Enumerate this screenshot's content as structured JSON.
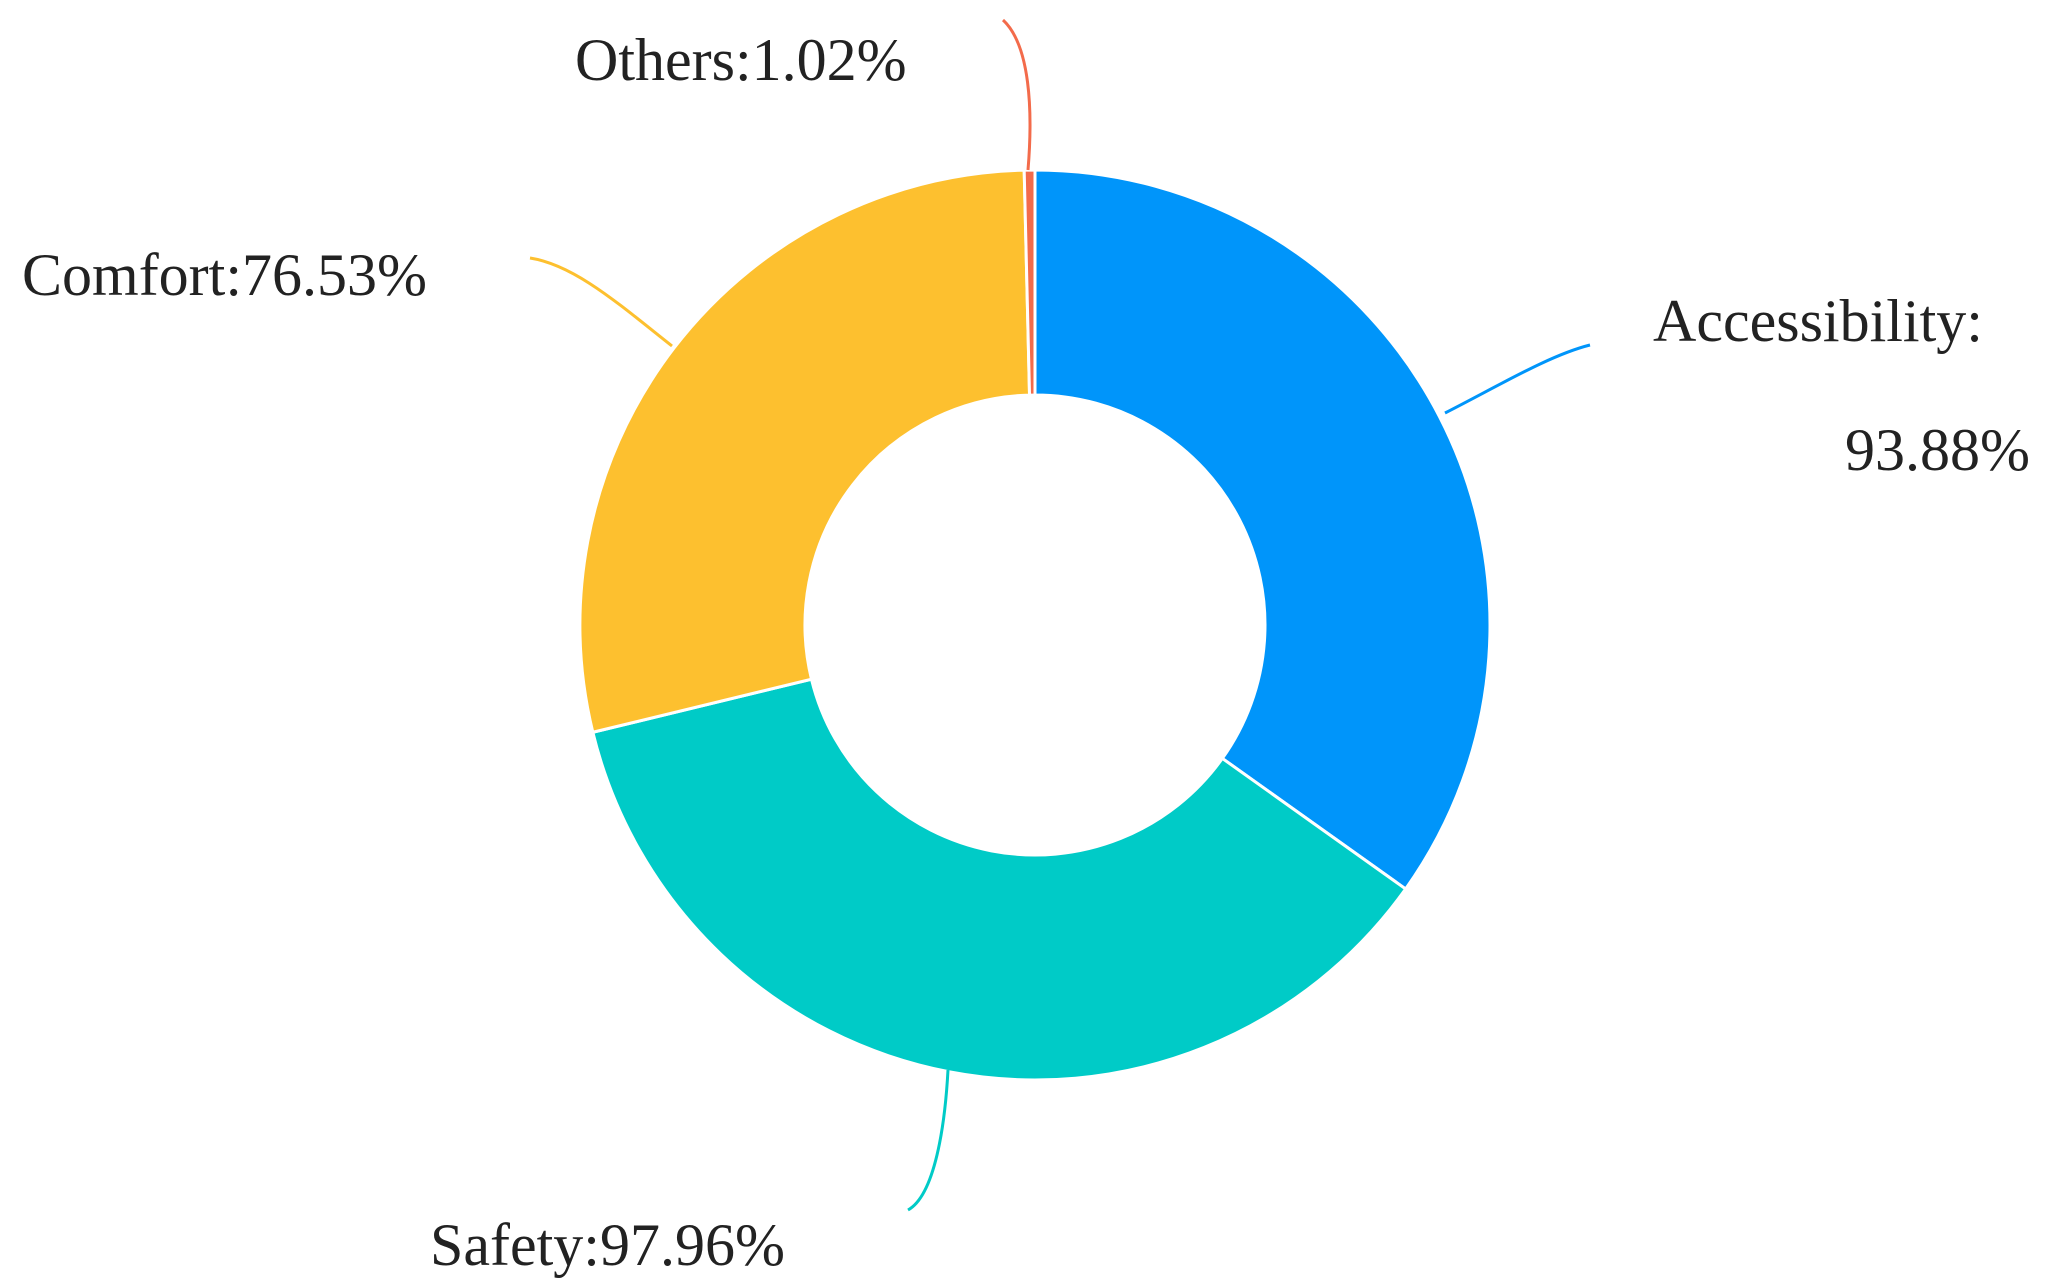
{
  "chart_data": {
    "type": "pie",
    "variant": "donut",
    "categories": [
      "Accessibility",
      "Safety",
      "Comfort",
      "Others"
    ],
    "values": [
      93.88,
      97.96,
      76.53,
      1.02
    ],
    "colors": [
      "#0095FA",
      "#00CBC7",
      "#FDC02F",
      "#F36B4B"
    ],
    "labels": [
      {
        "lines": [
          "Accessibility:",
          "93.88%"
        ]
      },
      {
        "lines": [
          "Safety:97.96%"
        ]
      },
      {
        "lines": [
          "Comfort:76.53%"
        ]
      },
      {
        "lines": [
          "Others:1.02%"
        ]
      }
    ],
    "title": "",
    "legend": "none"
  }
}
